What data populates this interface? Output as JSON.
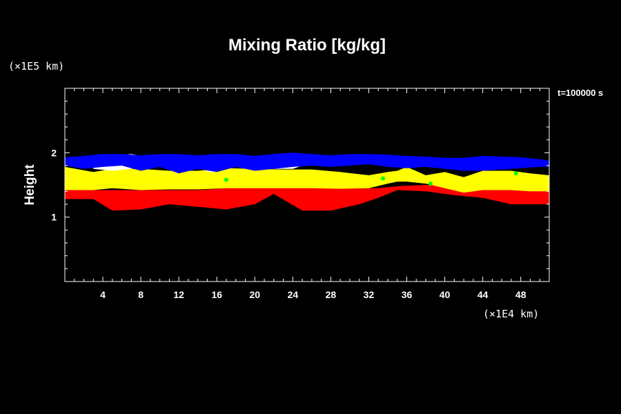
{
  "chart_data": {
    "type": "heatmap",
    "title": "Mixing Ratio [kg/kg]",
    "ylabel": "Height",
    "yunit": "(×1E5 km)",
    "xunit": "(×1E4 km)",
    "time_label": "t=100000 s",
    "xlim": [
      0,
      51
    ],
    "ylim": [
      0,
      3
    ],
    "x_ticks": [
      4,
      8,
      12,
      16,
      20,
      24,
      28,
      32,
      36,
      40,
      44,
      48
    ],
    "y_ticks": [
      1,
      2
    ],
    "grid": false,
    "colors": {
      "red": "#ff0000",
      "yellow": "#ffff00",
      "white": "#ffffff",
      "blue": "#0000ff",
      "green": "#00ff00",
      "background": "#000000"
    },
    "layers": [
      {
        "name": "red",
        "color": "#ff0000",
        "x": [
          0,
          3,
          5,
          8,
          11,
          14,
          17,
          20,
          22,
          25,
          28,
          31,
          33,
          35,
          38,
          41,
          44,
          47,
          51
        ],
        "bottom": [
          1.28,
          1.28,
          1.1,
          1.12,
          1.2,
          1.16,
          1.12,
          1.2,
          1.36,
          1.1,
          1.1,
          1.2,
          1.3,
          1.42,
          1.4,
          1.34,
          1.3,
          1.2,
          1.2
        ],
        "top": [
          1.42,
          1.42,
          1.42,
          1.42,
          1.42,
          1.42,
          1.45,
          1.45,
          1.45,
          1.45,
          1.45,
          1.45,
          1.45,
          1.48,
          1.5,
          1.48,
          1.45,
          1.45,
          1.45
        ]
      },
      {
        "name": "yellow",
        "color": "#ffff00",
        "x": [
          0,
          3,
          5,
          8,
          11,
          14,
          17,
          20,
          23,
          26,
          29,
          32,
          34,
          35,
          36,
          38,
          40,
          42,
          44,
          47,
          49,
          51
        ],
        "bottom": [
          1.42,
          1.42,
          1.45,
          1.42,
          1.43,
          1.43,
          1.45,
          1.45,
          1.45,
          1.45,
          1.44,
          1.45,
          1.52,
          1.55,
          1.55,
          1.52,
          1.45,
          1.38,
          1.42,
          1.42,
          1.4,
          1.4
        ],
        "top": [
          1.78,
          1.7,
          1.75,
          1.75,
          1.72,
          1.72,
          1.76,
          1.75,
          1.74,
          1.74,
          1.7,
          1.65,
          1.7,
          1.72,
          1.78,
          1.65,
          1.7,
          1.62,
          1.72,
          1.72,
          1.68,
          1.65
        ]
      },
      {
        "name": "white",
        "color": "#ffffff",
        "x": [
          3,
          5,
          7,
          8,
          9,
          10,
          11,
          14,
          15,
          16,
          17,
          18,
          20,
          22,
          23,
          24,
          25,
          26,
          28,
          34,
          35,
          36,
          37
        ],
        "bottom": [
          1.75,
          1.72,
          1.75,
          1.8,
          1.9,
          1.9,
          1.9,
          1.9,
          1.7,
          1.7,
          1.85,
          1.9,
          1.8,
          1.75,
          1.75,
          1.75,
          1.8,
          1.9,
          1.9,
          1.85,
          1.8,
          1.8,
          1.85
        ],
        "top": [
          1.85,
          1.95,
          1.98,
          1.95,
          1.9,
          1.9,
          1.9,
          1.9,
          1.85,
          1.85,
          1.85,
          1.9,
          1.9,
          1.88,
          1.9,
          1.92,
          1.9,
          1.9,
          1.9,
          1.85,
          1.8,
          1.8,
          1.85
        ]
      },
      {
        "name": "blue",
        "color": "#0000ff",
        "x": [
          0,
          2,
          4,
          6,
          8,
          10,
          12,
          14,
          16,
          18,
          20,
          22,
          24,
          26,
          28,
          30,
          32,
          34,
          36,
          38,
          40,
          42,
          44,
          46,
          48,
          50,
          51
        ],
        "bottom": [
          1.8,
          1.75,
          1.78,
          1.8,
          1.72,
          1.78,
          1.68,
          1.75,
          1.7,
          1.78,
          1.72,
          1.75,
          1.78,
          1.8,
          1.78,
          1.8,
          1.82,
          1.78,
          1.76,
          1.78,
          1.75,
          1.72,
          1.72,
          1.74,
          1.76,
          1.78,
          1.78
        ],
        "top": [
          1.93,
          1.95,
          1.98,
          1.98,
          1.96,
          1.98,
          1.98,
          1.96,
          1.98,
          1.98,
          1.95,
          1.98,
          2.0,
          1.98,
          1.96,
          1.98,
          1.98,
          1.97,
          1.95,
          1.94,
          1.92,
          1.92,
          1.95,
          1.94,
          1.93,
          1.9,
          1.88
        ]
      }
    ],
    "green_spots": [
      [
        17,
        1.58
      ],
      [
        33.5,
        1.6
      ],
      [
        38.5,
        1.52
      ],
      [
        47.5,
        1.68
      ]
    ]
  }
}
